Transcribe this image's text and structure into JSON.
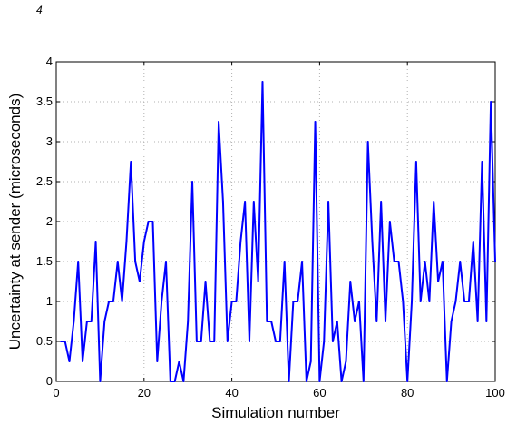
{
  "chart_data": {
    "type": "line",
    "title": "",
    "xlabel": "Simulation number",
    "ylabel": "Uncertainty at sender (microseconds)",
    "xlim": [
      0,
      100
    ],
    "ylim": [
      0,
      4
    ],
    "x_ticks": [
      "0",
      "20",
      "40",
      "60",
      "80",
      "100"
    ],
    "y_ticks": [
      "0",
      "0.5",
      "1",
      "1.5",
      "2",
      "2.5",
      "3",
      "3.5",
      "4"
    ],
    "grid": true,
    "legend": "none",
    "series": [
      {
        "color": "#0000ff",
        "x": [
          1,
          2,
          3,
          4,
          5,
          6,
          7,
          8,
          9,
          10,
          11,
          12,
          13,
          14,
          15,
          16,
          17,
          18,
          19,
          20,
          21,
          22,
          23,
          24,
          25,
          26,
          27,
          28,
          29,
          30,
          31,
          32,
          33,
          34,
          35,
          36,
          37,
          38,
          39,
          40,
          41,
          42,
          43,
          44,
          45,
          46,
          47,
          48,
          49,
          50,
          51,
          52,
          53,
          54,
          55,
          56,
          57,
          58,
          59,
          60,
          61,
          62,
          63,
          64,
          65,
          66,
          67,
          68,
          69,
          70,
          71,
          72,
          73,
          74,
          75,
          76,
          77,
          78,
          79,
          80,
          81,
          82,
          83,
          84,
          85,
          86,
          87,
          88,
          89,
          90,
          91,
          92,
          93,
          94,
          95,
          96,
          97,
          98,
          99,
          100
        ],
        "values": [
          0.5,
          0.5,
          0.25,
          0.75,
          1.5,
          0.25,
          0.75,
          0.75,
          1.75,
          0,
          0.75,
          1,
          1,
          1.5,
          1,
          1.75,
          2.75,
          1.5,
          1.25,
          1.75,
          2,
          2,
          0.25,
          1,
          1.5,
          0,
          0,
          0.25,
          0,
          0.75,
          2.5,
          0.5,
          0.5,
          1.25,
          0.5,
          0.5,
          3.25,
          2.25,
          0.5,
          1,
          1,
          1.75,
          2.25,
          0.5,
          2.25,
          1.25,
          3.75,
          0.75,
          0.75,
          0.5,
          0.5,
          1.5,
          0,
          1,
          1,
          1.5,
          0,
          0.25,
          3.25,
          0,
          0.5,
          2.25,
          0.5,
          0.75,
          0,
          0.25,
          1.25,
          0.75,
          1,
          0,
          3,
          1.75,
          0.75,
          2.25,
          0.75,
          2,
          1.5,
          1.5,
          1,
          0,
          1,
          2.75,
          1,
          1.5,
          1,
          2.25,
          1.25,
          1.5,
          0,
          0.75,
          1,
          1.5,
          1,
          1,
          1.75,
          0.75,
          2.75,
          0.75,
          3.5,
          1.5
        ]
      }
    ]
  },
  "stray_mark": "4"
}
